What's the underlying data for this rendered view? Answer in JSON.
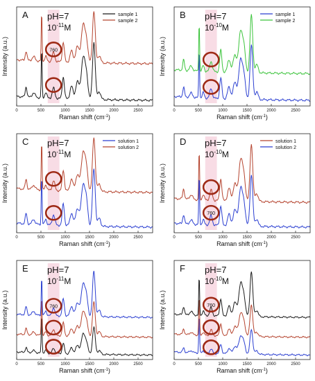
{
  "chart_data": [
    {
      "type": "line",
      "panel_label": "A",
      "annotation": "pH=7",
      "concentration": {
        "base": "10",
        "exp": "-11",
        "unit": "M"
      },
      "peak_label": "760",
      "xlabel": "Raman shift (cm",
      "xlabel_exp": "-1",
      "xlabel_end": ")",
      "ylabel": "Intensity (a.u.)",
      "xlim": [
        0,
        2800
      ],
      "xticks": [
        0,
        500,
        1000,
        1500,
        2000,
        2500
      ],
      "legend_position": "top-right",
      "series": [
        {
          "name": "sample 1",
          "color": "#1a1a1a",
          "offset": 0.05,
          "peak_scale": 1.0,
          "seed": 1
        },
        {
          "name": "sample 2",
          "color": "#b5442f",
          "offset": 0.42,
          "peak_scale": 0.9,
          "seed": 2
        }
      ]
    },
    {
      "type": "line",
      "panel_label": "B",
      "annotation": "pH=7",
      "concentration": {
        "base": "10",
        "exp": "-10",
        "unit": "M"
      },
      "peak_label": "",
      "xlabel": "Raman shift (cm",
      "xlabel_exp": "-1",
      "xlabel_end": ")",
      "ylabel": "Intensity (a.u.)",
      "xlim": [
        0,
        2800
      ],
      "xticks": [
        0,
        500,
        1000,
        1500,
        2000,
        2500
      ],
      "legend_position": "top-right",
      "series": [
        {
          "name": "sample 1",
          "color": "#2b3fd1",
          "offset": 0.05,
          "peak_scale": 0.95,
          "seed": 3
        },
        {
          "name": "sample 2",
          "color": "#3cc43c",
          "offset": 0.32,
          "peak_scale": 1.0,
          "seed": 4
        }
      ]
    },
    {
      "type": "line",
      "panel_label": "C",
      "annotation": "pH=7",
      "concentration": {
        "base": "10",
        "exp": "-11",
        "unit": "M"
      },
      "peak_label": "",
      "xlabel": "Raman shift (cm",
      "xlabel_exp": "-1",
      "xlabel_end": ")",
      "ylabel": "Intensity (a.u.)",
      "xlim": [
        0,
        2800
      ],
      "xticks": [
        0,
        500,
        1000,
        1500,
        2000,
        2500
      ],
      "legend_position": "top-right",
      "series": [
        {
          "name": "solution 1",
          "color": "#2b3fd1",
          "offset": 0.05,
          "peak_scale": 1.0,
          "seed": 5
        },
        {
          "name": "solution 2",
          "color": "#b5442f",
          "offset": 0.4,
          "peak_scale": 0.95,
          "seed": 6
        }
      ]
    },
    {
      "type": "line",
      "panel_label": "D",
      "annotation": "pH=7",
      "concentration": {
        "base": "10",
        "exp": "-10",
        "unit": "M"
      },
      "peak_label": "760",
      "xlabel": "Raman shift (cm",
      "xlabel_exp": "-1",
      "xlabel_end": ")",
      "ylabel": "Intensity (a.u.)",
      "xlim": [
        0,
        2800
      ],
      "xticks": [
        0,
        500,
        1000,
        1500,
        2000,
        2500
      ],
      "legend_position": "top-right",
      "series": [
        {
          "name": "solution 1",
          "color": "#b5442f",
          "offset": 0.3,
          "peak_scale": 1.0,
          "seed": 7
        },
        {
          "name": "solution 2",
          "color": "#2b3fd1",
          "offset": 0.05,
          "peak_scale": 0.9,
          "seed": 8
        }
      ]
    },
    {
      "type": "line",
      "panel_label": "E",
      "annotation": "pH=7",
      "concentration": {
        "base": "10",
        "exp": "-11",
        "unit": "M"
      },
      "peak_label": "760",
      "xlabel": "Raman shift (cm",
      "xlabel_exp": "-1",
      "xlabel_end": ")",
      "ylabel": "Intensity (a.u.)",
      "xlim": [
        0,
        2800
      ],
      "xticks": [
        0,
        500,
        1000,
        1500,
        2000,
        2500
      ],
      "legend_position": "none",
      "series": [
        {
          "name": "",
          "color": "#1a1a1a",
          "offset": 0.04,
          "peak_scale": 0.6,
          "seed": 9
        },
        {
          "name": "",
          "color": "#b5442f",
          "offset": 0.22,
          "peak_scale": 0.75,
          "seed": 10
        },
        {
          "name": "",
          "color": "#2b3fd1",
          "offset": 0.42,
          "peak_scale": 1.0,
          "seed": 11
        }
      ]
    },
    {
      "type": "line",
      "panel_label": "F",
      "annotation": "pH=7",
      "concentration": {
        "base": "10",
        "exp": "-10",
        "unit": "M"
      },
      "peak_label": "760",
      "xlabel": "Raman shift (cm",
      "xlabel_exp": "-1",
      "xlabel_end": ")",
      "ylabel": "Intensity (a.u.)",
      "xlim": [
        0,
        2800
      ],
      "xticks": [
        0,
        500,
        1000,
        1500,
        2000,
        2500
      ],
      "legend_position": "none",
      "series": [
        {
          "name": "",
          "color": "#2b3fd1",
          "offset": 0.04,
          "peak_scale": 0.55,
          "seed": 12
        },
        {
          "name": "",
          "color": "#b5442f",
          "offset": 0.22,
          "peak_scale": 0.7,
          "seed": 13
        },
        {
          "name": "",
          "color": "#1a1a1a",
          "offset": 0.42,
          "peak_scale": 1.0,
          "seed": 14
        }
      ]
    }
  ],
  "highlight_color": "#ec9ab4",
  "circle_color": "#9e2a16"
}
